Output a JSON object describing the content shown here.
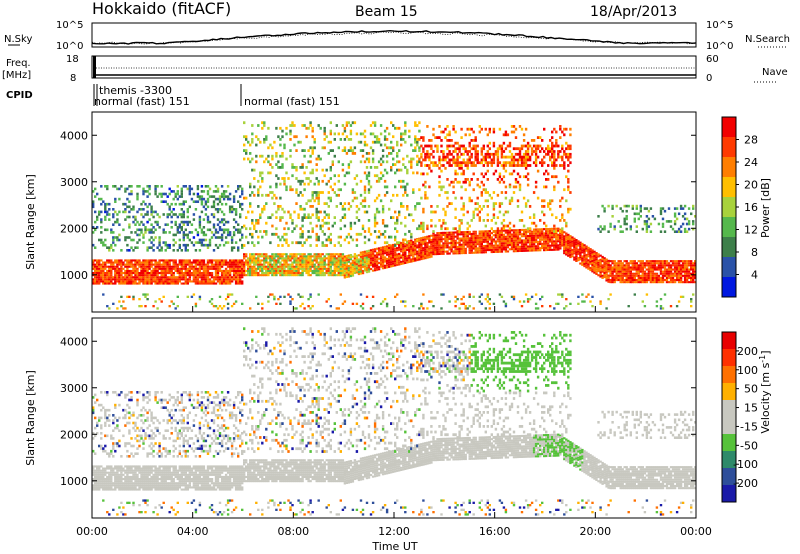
{
  "header": {
    "station": "Hokkaido (fitACF)",
    "beam": "Beam 15",
    "date": "18/Apr/2013"
  },
  "panels": {
    "nsky_label": "N.Sky",
    "nsearch_label": "N.Search",
    "freq_label_1": "Freq.",
    "freq_label_2": "[MHz]",
    "nave_label": "Nave",
    "cpid_label": "CPID",
    "nsky_ticks": [
      "10^5",
      "10^0"
    ],
    "nsearch_ticks": [
      "10^5",
      "10^0"
    ],
    "freq_ticks": [
      "18",
      "8"
    ],
    "nave_ticks": [
      "60",
      "0"
    ],
    "cpid_entries": [
      "themis -3300",
      "normal (fast) 151",
      "normal (fast) 151"
    ]
  },
  "chart_data": [
    {
      "type": "heatmap",
      "name": "Power",
      "ylabel": "Slant Range [km]",
      "yticks": [
        "1000",
        "2000",
        "3000",
        "4000"
      ],
      "ylim": [
        200,
        4500
      ],
      "xlim": [
        "00:00",
        "24:00"
      ],
      "colorbar": {
        "label": "Power [dB]",
        "ticks": [
          "28",
          "24",
          "20",
          "16",
          "12",
          "8",
          "4"
        ],
        "range": [
          0,
          30
        ],
        "colors": [
          "#0018e0",
          "#2a52a8",
          "#3d7f4a",
          "#55b84c",
          "#a8d23c",
          "#ffbf00",
          "#ff7e00",
          "#ff3a00",
          "#f20000"
        ]
      }
    },
    {
      "type": "heatmap",
      "name": "Velocity",
      "ylabel": "Slant Range [km]",
      "yticks": [
        "1000",
        "2000",
        "3000",
        "4000"
      ],
      "ylim": [
        200,
        4500
      ],
      "xlim": [
        "00:00",
        "24:00"
      ],
      "colorbar": {
        "label": "Velocity [m s",
        "label_sup": "-1",
        "label_end": "]",
        "ticks": [
          "200",
          "100",
          "50",
          "15",
          "-15",
          "-50",
          "-100",
          "-200"
        ],
        "range": [
          -250,
          250
        ],
        "colors": [
          "#1a1aa8",
          "#2e4e9a",
          "#2e8a6a",
          "#56c23a",
          "#c8c8c0",
          "#c8c8c0",
          "#ffb000",
          "#ff7000",
          "#ff3000",
          "#e80000"
        ]
      }
    }
  ],
  "x_axis": {
    "ticks": [
      "00:00",
      "04:00",
      "08:00",
      "12:00",
      "16:00",
      "20:00",
      "00:00"
    ],
    "label": "Time UT"
  }
}
